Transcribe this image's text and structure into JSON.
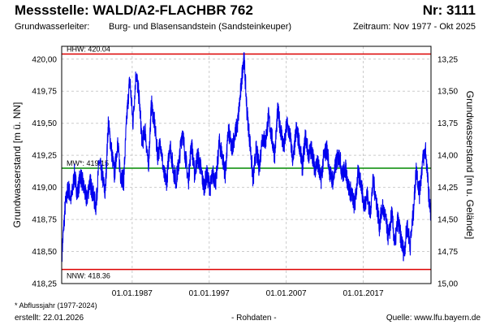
{
  "header": {
    "title": "Messstelle: WALD/A2-FLACHBR 762",
    "station_nr": "Nr: 3111",
    "aquifer_label": "Grundwasserleiter:",
    "aquifer_value": "Burg- und Blasensandstein (Sandsteinkeuper)",
    "period": "Zeitraum: Nov 1977 - Okt 2025"
  },
  "footer": {
    "footnote": "* Abflussjahr (1977-2024)",
    "created": "erstellt:   22.01.2026",
    "data_kind": "- Rohdaten -",
    "source": "Quelle:  www.lfu.bayern.de"
  },
  "colors": {
    "series": "#0000ee",
    "hhw": "#dd0000",
    "nnw": "#dd0000",
    "mw": "#008800",
    "grid": "#cccccc"
  },
  "chart_data": {
    "type": "line",
    "xlabel": "",
    "ylabel": "Grundwasserstand [m ü. NN]",
    "ylabel_right": "Grundwasserstand [m u. Gelände]",
    "grid": true,
    "xlim": [
      1977.85,
      2025.8
    ],
    "ylim": [
      418.25,
      420.1
    ],
    "ylim_right": [
      15.04,
      13.19
    ],
    "yticks": [
      "418,25",
      "418,50",
      "418,75",
      "419,00",
      "419,25",
      "419,50",
      "419,75",
      "420,00"
    ],
    "yticks_right": [
      "15,00",
      "14,75",
      "14,50",
      "14,25",
      "14,00",
      "13,75",
      "13,50",
      "13,25"
    ],
    "xticks": [
      "01.01.1987",
      "01.01.1997",
      "01.01.2007",
      "01.01.2017"
    ],
    "reference_lines": [
      {
        "label": "HHW: 420.04",
        "value": 420.04
      },
      {
        "label": "MW*: 419.15",
        "value": 419.15
      },
      {
        "label": "NNW: 418.36",
        "value": 418.36
      }
    ],
    "x": [
      1977.9,
      1978.3,
      1978.7,
      1979.1,
      1979.5,
      1979.9,
      1980.3,
      1980.7,
      1981.1,
      1981.5,
      1981.9,
      1982.3,
      1982.7,
      1983.1,
      1983.5,
      1983.9,
      1984.3,
      1984.7,
      1985.1,
      1985.5,
      1985.9,
      1986.3,
      1986.7,
      1987.1,
      1987.5,
      1987.9,
      1988.3,
      1988.7,
      1989.1,
      1989.5,
      1989.9,
      1990.3,
      1990.7,
      1991.1,
      1991.5,
      1991.9,
      1992.3,
      1992.7,
      1993.1,
      1993.5,
      1993.9,
      1994.3,
      1994.7,
      1995.1,
      1995.5,
      1995.9,
      1996.3,
      1996.7,
      1997.1,
      1997.5,
      1997.9,
      1998.3,
      1998.7,
      1999.1,
      1999.5,
      1999.9,
      2000.3,
      2000.7,
      2001.1,
      2001.5,
      2001.9,
      2002.3,
      2002.7,
      2003.1,
      2003.5,
      2003.9,
      2004.3,
      2004.7,
      2005.1,
      2005.5,
      2005.9,
      2006.3,
      2006.7,
      2007.1,
      2007.5,
      2007.9,
      2008.3,
      2008.7,
      2009.1,
      2009.5,
      2009.9,
      2010.3,
      2010.7,
      2011.1,
      2011.5,
      2011.9,
      2012.3,
      2012.7,
      2013.1,
      2013.5,
      2013.9,
      2014.3,
      2014.7,
      2015.1,
      2015.5,
      2015.9,
      2016.3,
      2016.7,
      2017.1,
      2017.5,
      2017.9,
      2018.3,
      2018.7,
      2019.1,
      2019.5,
      2019.9,
      2020.3,
      2020.7,
      2021.1,
      2021.5,
      2021.9,
      2022.3,
      2022.7,
      2023.1,
      2023.5,
      2023.9,
      2024.3,
      2024.7,
      2025.1,
      2025.5,
      2025.75
    ],
    "values": [
      418.5,
      418.85,
      419.0,
      418.9,
      419.1,
      418.95,
      419.1,
      419.0,
      418.9,
      419.05,
      418.95,
      418.85,
      419.2,
      419.1,
      418.95,
      419.5,
      419.3,
      419.1,
      419.35,
      419.1,
      419.05,
      419.55,
      419.85,
      419.5,
      419.9,
      419.7,
      419.35,
      419.45,
      419.15,
      419.65,
      419.5,
      419.25,
      419.35,
      419.1,
      419.05,
      419.35,
      419.15,
      419.05,
      419.2,
      419.45,
      419.25,
      419.05,
      419.35,
      419.1,
      419.25,
      419.15,
      419.0,
      419.1,
      419.0,
      419.1,
      419.05,
      419.35,
      419.25,
      419.1,
      419.45,
      419.3,
      419.4,
      419.5,
      419.75,
      420.04,
      419.6,
      419.35,
      419.05,
      419.3,
      419.15,
      419.4,
      419.35,
      419.55,
      419.4,
      419.25,
      419.6,
      419.45,
      419.3,
      419.5,
      419.4,
      419.2,
      419.45,
      419.35,
      419.15,
      419.4,
      419.25,
      419.3,
      419.15,
      419.2,
      419.05,
      419.25,
      419.3,
      419.1,
      419.05,
      419.2,
      419.25,
      419.1,
      419.15,
      419.0,
      418.95,
      418.85,
      419.1,
      419.05,
      418.85,
      418.95,
      418.8,
      419.05,
      418.9,
      418.7,
      418.85,
      418.75,
      418.6,
      418.8,
      418.55,
      418.75,
      418.6,
      418.48,
      418.7,
      418.55,
      418.8,
      419.15,
      418.95,
      419.2,
      419.3,
      418.95,
      418.8
    ]
  }
}
